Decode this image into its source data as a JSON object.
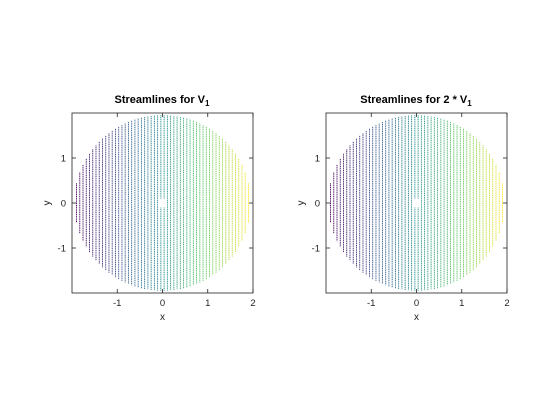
{
  "chart_data": [
    {
      "type": "streamline",
      "title_main": "Streamlines for V",
      "title_sub": "1",
      "xlabel": "x",
      "ylabel": "y",
      "xlim": [
        -2,
        2
      ],
      "ylim": [
        -2,
        2
      ],
      "xticks": [
        -1,
        0,
        1,
        2
      ],
      "xtick_labels": [
        "-1",
        "0",
        "1",
        "2"
      ],
      "yticks": [
        1,
        0,
        -1
      ],
      "ytick_labels": [
        "1",
        "0",
        "-1"
      ],
      "domain": "disk",
      "domain_radius": 1.95,
      "hole_center": [
        0,
        0
      ],
      "hole_half_width": 0.1,
      "streamline_direction": "vertical",
      "streamline_x_start": -1.9,
      "streamline_x_end": 1.9,
      "streamline_count": 54,
      "colormap": [
        "#440154",
        "#3b528b",
        "#21908d",
        "#5dc963",
        "#fde725"
      ],
      "grid": false
    },
    {
      "type": "streamline",
      "title_main": "Streamlines for 2 * V",
      "title_sub": "1",
      "xlabel": "x",
      "ylabel": "y",
      "xlim": [
        -2,
        2
      ],
      "ylim": [
        -2,
        2
      ],
      "xticks": [
        -1,
        0,
        1,
        2
      ],
      "xtick_labels": [
        "-1",
        "0",
        "1",
        "2"
      ],
      "yticks": [
        1,
        0,
        -1
      ],
      "ytick_labels": [
        "1",
        "0",
        "-1"
      ],
      "domain": "disk",
      "domain_radius": 1.95,
      "hole_center": [
        0,
        0
      ],
      "hole_half_width": 0.1,
      "streamline_direction": "vertical",
      "streamline_x_start": -1.9,
      "streamline_x_end": 1.9,
      "streamline_count": 54,
      "colormap": [
        "#440154",
        "#3b528b",
        "#21908d",
        "#5dc963",
        "#fde725"
      ],
      "grid": false
    }
  ]
}
